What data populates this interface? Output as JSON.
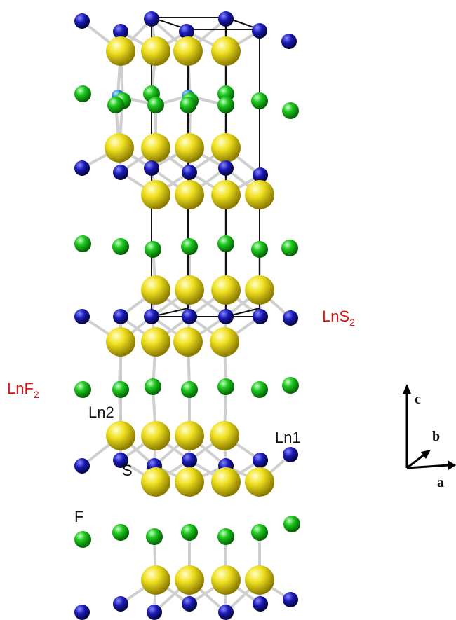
{
  "labels": {
    "lns2": {
      "base": "LnS",
      "sub": "2"
    },
    "lnf2": {
      "base": "LnF",
      "sub": "2"
    },
    "ln2": "Ln2",
    "ln1": "Ln1",
    "s": "S",
    "f": "F"
  },
  "axes": {
    "c": "c",
    "b": "b",
    "a": "a"
  },
  "atom_types": {
    "ln": "Ln",
    "s": "S",
    "f": "F",
    "ln2": "Ln2"
  },
  "colors": {
    "ln": "#1a1ab8",
    "s": "#e6d81c",
    "f": "#1ec81e",
    "ln2": "#2a8fd6",
    "label_red": "#e01010",
    "cell": "#111111",
    "bond": "#c8c8c8"
  }
}
